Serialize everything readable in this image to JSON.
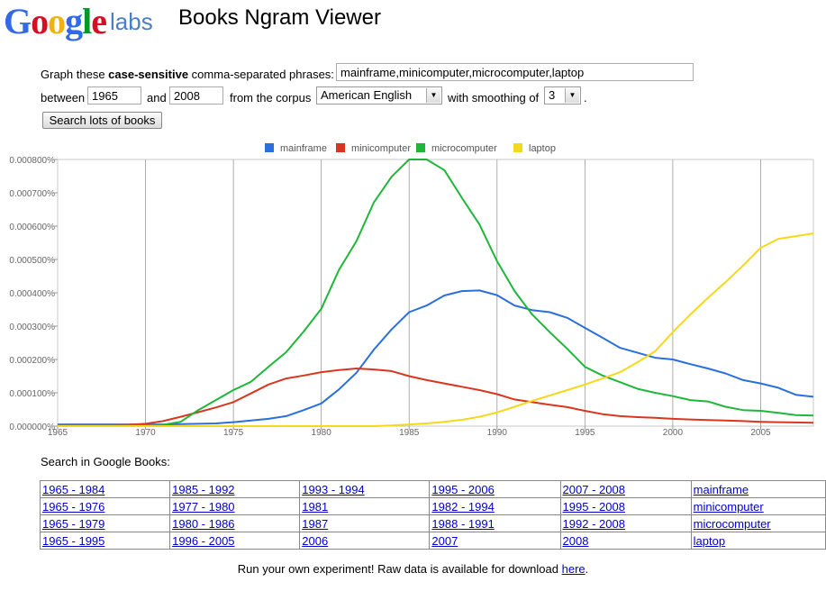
{
  "header": {
    "logo_google": "Google",
    "logo_labs": "labs",
    "title": "Books Ngram Viewer"
  },
  "form": {
    "graph_prefix": "Graph these ",
    "graph_bold": "case-sensitive",
    "graph_suffix": " comma-separated phrases:",
    "phrases": "mainframe,minicomputer,microcomputer,laptop",
    "between_label": "between",
    "start_year": "1965",
    "and_label": "and",
    "end_year": "2008",
    "corpus_label": "from the corpus",
    "corpus": "American English",
    "smoothing_label": "with smoothing of",
    "smoothing": "3",
    "period": ".",
    "search_button": "Search lots of books"
  },
  "chart_data": {
    "type": "line",
    "title": "",
    "xlabel": "",
    "ylabel": "",
    "xlim": [
      1965,
      2008
    ],
    "ylim": [
      0,
      0.0008
    ],
    "x_ticks": [
      "1965",
      "1970",
      "1975",
      "1980",
      "1985",
      "1990",
      "1995",
      "2000",
      "2005"
    ],
    "y_ticks": [
      "0.000000%",
      "0.000100%",
      "0.000200%",
      "0.000300%",
      "0.000400%",
      "0.000500%",
      "0.000600%",
      "0.000700%",
      "0.000800%"
    ],
    "legend_position": "top-center",
    "grid": true,
    "x": [
      1965,
      1966,
      1967,
      1968,
      1969,
      1970,
      1971,
      1972,
      1973,
      1974,
      1975,
      1976,
      1977,
      1978,
      1979,
      1980,
      1981,
      1982,
      1983,
      1984,
      1985,
      1986,
      1987,
      1988,
      1989,
      1990,
      1991,
      1992,
      1993,
      1994,
      1995,
      1996,
      1997,
      1998,
      1999,
      2000,
      2001,
      2002,
      2003,
      2004,
      2005,
      2006,
      2007,
      2008
    ],
    "series": [
      {
        "name": "mainframe",
        "color": "#2a6fdb",
        "values": [
          5e-06,
          5e-06,
          5e-06,
          5e-06,
          5e-06,
          5e-06,
          5e-06,
          6e-06,
          7e-06,
          8e-06,
          1.2e-05,
          1.7e-05,
          2.2e-05,
          3e-05,
          4.8e-05,
          6.8e-05,
          0.00011,
          0.00016,
          0.00023,
          0.00029,
          0.000342,
          0.000362,
          0.000392,
          0.000405,
          0.000407,
          0.000393,
          0.000362,
          0.000348,
          0.000342,
          0.000325,
          0.000295,
          0.000265,
          0.000235,
          0.00022,
          0.000205,
          0.0002,
          0.000186,
          0.000173,
          0.000158,
          0.000138,
          0.000128,
          0.000115,
          9.4e-05,
          8.8e-05
        ]
      },
      {
        "name": "minicomputer",
        "color": "#d9361e",
        "values": [
          3e-06,
          3e-06,
          3e-06,
          3e-06,
          4e-06,
          7e-06,
          1.5e-05,
          2.8e-05,
          4.2e-05,
          5.6e-05,
          7.2e-05,
          9.8e-05,
          0.000125,
          0.000143,
          0.000152,
          0.000162,
          0.000168,
          0.000173,
          0.00017,
          0.000165,
          0.00015,
          0.000138,
          0.000128,
          0.000118,
          0.000108,
          9.6e-05,
          8e-05,
          7.2e-05,
          6.4e-05,
          5.7e-05,
          4.6e-05,
          3.6e-05,
          3e-05,
          2.7e-05,
          2.5e-05,
          2.2e-05,
          2e-05,
          1.8e-05,
          1.7e-05,
          1.5e-05,
          1.3e-05,
          1.2e-05,
          1.1e-05,
          1e-05
        ]
      },
      {
        "name": "microcomputer",
        "color": "#1fb73a",
        "values": [
          2e-06,
          2e-06,
          2e-06,
          2e-06,
          2e-06,
          2e-06,
          4e-06,
          1.3e-05,
          4.8e-05,
          7.8e-05,
          0.000108,
          0.000133,
          0.000178,
          0.000222,
          0.000284,
          0.000352,
          0.000468,
          0.000555,
          0.000672,
          0.000748,
          0.0008,
          0.0008,
          0.000768,
          0.000685,
          0.000605,
          0.000495,
          0.000405,
          0.000335,
          0.000282,
          0.000232,
          0.000178,
          0.000152,
          0.000132,
          0.000112,
          0.0001,
          9e-05,
          7.8e-05,
          7.4e-05,
          5.8e-05,
          4.8e-05,
          4.6e-05,
          4e-05,
          3.3e-05,
          3.2e-05
        ]
      },
      {
        "name": "laptop",
        "color": "#f5d81a",
        "values": [
          0,
          0,
          0,
          0,
          0,
          0,
          0,
          0,
          0,
          0,
          0,
          0,
          0,
          0,
          0,
          0,
          0,
          0,
          0,
          2e-06,
          5e-06,
          8e-06,
          1.3e-05,
          1.9e-05,
          2.8e-05,
          4.1e-05,
          5.8e-05,
          7.6e-05,
          9.2e-05,
          0.000108,
          0.000125,
          0.000143,
          0.000162,
          0.000192,
          0.000225,
          0.000282,
          0.000335,
          0.000385,
          0.000432,
          0.000482,
          0.000535,
          0.000562,
          0.00057,
          0.000578
        ]
      }
    ]
  },
  "search_section": {
    "heading": "Search in Google Books:",
    "rows": [
      {
        "links": [
          "1965 - 1984",
          "1985 - 1992",
          "1993 - 1994",
          "1995 - 2006",
          "2007 - 2008"
        ],
        "term": "mainframe"
      },
      {
        "links": [
          "1965 - 1976",
          "1977 - 1980",
          "1981",
          "1982 - 1994",
          "1995 - 2008"
        ],
        "term": "minicomputer"
      },
      {
        "links": [
          "1965 - 1979",
          "1980 - 1986",
          "1987",
          "1988 - 1991",
          "1992 - 2008"
        ],
        "term": "microcomputer"
      },
      {
        "links": [
          "1965 - 1995",
          "1996 - 2005",
          "2006",
          "2007",
          "2008"
        ],
        "term": "laptop"
      }
    ]
  },
  "footer": {
    "text": "Run your own experiment! Raw data is available for download ",
    "link": "here",
    "end": "."
  }
}
